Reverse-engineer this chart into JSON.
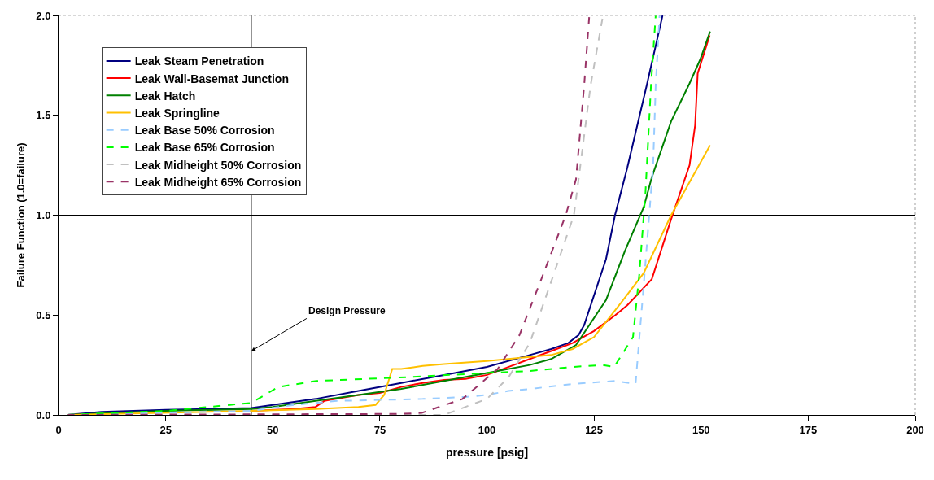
{
  "chart_data": {
    "type": "line",
    "xlabel": "pressure [psig]",
    "ylabel": "Failure Function (1.0=failure)",
    "xlim": [
      0,
      200
    ],
    "xticks": [
      0,
      25,
      50,
      75,
      100,
      125,
      150,
      175,
      200
    ],
    "ylim": [
      0,
      2
    ],
    "yticks": [
      {
        "value": 0,
        "label": "0.0"
      },
      {
        "value": 0.5,
        "label": "0.5"
      },
      {
        "value": 1,
        "label": "1.0"
      },
      {
        "value": 1.5,
        "label": "1.5"
      },
      {
        "value": 2,
        "label": "2.0"
      }
    ],
    "grid": false,
    "legend": "top left",
    "marker": "none",
    "ref_lines": [
      {
        "axis": "x",
        "value": 45,
        "label": "Design Pressure",
        "color": "#000000"
      },
      {
        "axis": "y",
        "value": 1,
        "color": "#000000"
      }
    ],
    "series": [
      {
        "name": "Leak Steam Penetration",
        "color": "#000080",
        "line_style": "solid",
        "x": [
          2,
          10,
          25,
          45,
          50,
          60,
          70,
          80,
          90,
          100,
          110,
          115,
          119,
          121.4,
          122.7,
          127.8,
          129.9,
          132.8,
          137.3,
          141
        ],
        "values": [
          0,
          0.015,
          0.025,
          0.035,
          0.05,
          0.08,
          0.12,
          0.16,
          0.2,
          0.24,
          0.3,
          0.33,
          0.36,
          0.4,
          0.45,
          0.78,
          1.0,
          1.24,
          1.65,
          2.0
        ]
      },
      {
        "name": "Leak Wall-Basemat Junction",
        "color": "#ff0000",
        "line_style": "solid",
        "x": [
          45,
          55,
          60,
          62,
          70,
          75,
          80,
          85,
          90,
          95,
          100,
          105,
          110,
          115,
          120,
          125,
          130,
          132.8,
          135,
          138.5,
          143,
          147.3,
          148.6,
          149.2,
          152
        ],
        "values": [
          0.02,
          0.03,
          0.04,
          0.07,
          0.1,
          0.11,
          0.14,
          0.16,
          0.175,
          0.18,
          0.2,
          0.24,
          0.28,
          0.32,
          0.36,
          0.42,
          0.5,
          0.55,
          0.6,
          0.68,
          0.98,
          1.25,
          1.45,
          1.71,
          1.9
        ]
      },
      {
        "name": "Leak Hatch",
        "color": "#008000",
        "line_style": "solid",
        "x": [
          2,
          25,
          45,
          50,
          60,
          70,
          80,
          90,
          100,
          110,
          115,
          120.8,
          127.8,
          132.2,
          136.6,
          138.5,
          143,
          147.3,
          149.8,
          152.1
        ],
        "values": [
          0,
          0.02,
          0.03,
          0.04,
          0.07,
          0.1,
          0.13,
          0.17,
          0.21,
          0.25,
          0.28,
          0.35,
          0.575,
          0.82,
          1.04,
          1.19,
          1.47,
          1.66,
          1.78,
          1.92
        ]
      },
      {
        "name": "Leak Springline",
        "color": "#ffc000",
        "line_style": "solid",
        "x": [
          2,
          45,
          60,
          70,
          74,
          76,
          77.9,
          80,
          85,
          90,
          100,
          105,
          110,
          115,
          120,
          125,
          130.9,
          136.6,
          143,
          152.1
        ],
        "values": [
          0,
          0.02,
          0.03,
          0.04,
          0.05,
          0.1,
          0.23,
          0.23,
          0.245,
          0.255,
          0.27,
          0.28,
          0.29,
          0.3,
          0.33,
          0.39,
          0.55,
          0.71,
          1.0,
          1.35
        ]
      },
      {
        "name": "Leak Base 50% Corrosion",
        "color": "#99ccff",
        "line_style": "dashed",
        "x": [
          2,
          45,
          55,
          65,
          75,
          85,
          95,
          100,
          105,
          110,
          120,
          130,
          134.7,
          136.6,
          138.8,
          139.4,
          140.3
        ],
        "values": [
          0,
          0.02,
          0.05,
          0.07,
          0.075,
          0.08,
          0.09,
          0.1,
          0.12,
          0.13,
          0.155,
          0.17,
          0.155,
          0.65,
          1.25,
          1.65,
          2.0
        ]
      },
      {
        "name": "Leak Base 65% Corrosion",
        "color": "#00ff00",
        "line_style": "dashed",
        "x": [
          2,
          25,
          45,
          51.3,
          60.2,
          82.4,
          100,
          110,
          120,
          127,
          129.7,
          134.1,
          135.6,
          137,
          138.3,
          139.4
        ],
        "values": [
          0,
          0.02,
          0.06,
          0.14,
          0.17,
          0.19,
          0.21,
          0.22,
          0.24,
          0.25,
          0.24,
          0.39,
          0.71,
          1.11,
          1.65,
          2.0
        ]
      },
      {
        "name": "Leak Midheight 50% Corrosion",
        "color": "#c0c0c0",
        "line_style": "dashed",
        "x": [
          2,
          88,
          90,
          100,
          105.1,
          110,
          115.2,
          120.3,
          121.4,
          124.2,
          127.1
        ],
        "values": [
          0,
          0,
          0,
          0.08,
          0.19,
          0.36,
          0.68,
          1.0,
          1.18,
          1.65,
          2.0
        ]
      },
      {
        "name": "Leak Midheight 65% Corrosion",
        "color": "#993366",
        "line_style": "dashed",
        "x": [
          2,
          80,
          84.8,
          94.3,
          102.5,
          107.6,
          112.7,
          118.4,
          120.8,
          122.7,
          123.9
        ],
        "values": [
          0,
          0.005,
          0.01,
          0.08,
          0.23,
          0.4,
          0.68,
          1.0,
          1.18,
          1.65,
          2.0
        ]
      }
    ]
  }
}
